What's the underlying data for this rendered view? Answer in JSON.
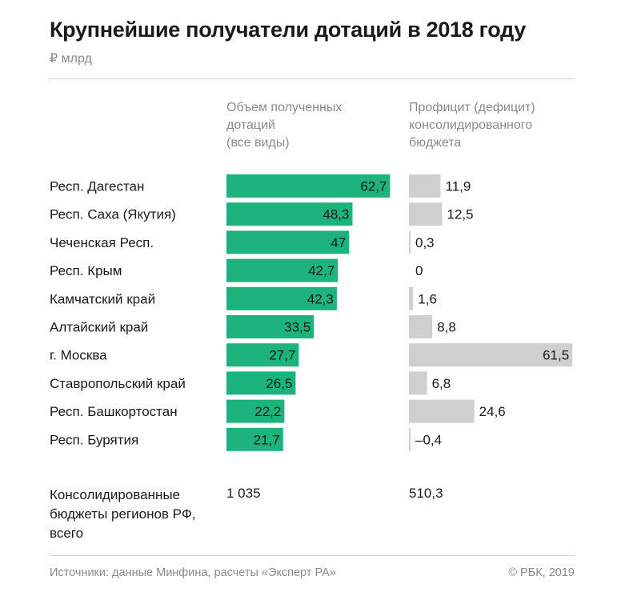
{
  "title": "Крупнейшие получатели дотаций в 2018 году",
  "unit": "₽ млрд",
  "columns": {
    "subsidies": [
      "Объем полученных",
      "дотаций",
      "(все виды)"
    ],
    "surplus": [
      "Профицит (дефицит)",
      "консолидированного",
      "бюджета"
    ]
  },
  "colors": {
    "subsidies": "#1db37d",
    "surplus": "#cfcfcf",
    "text": "#1a1a1a",
    "muted": "#8a8a8a"
  },
  "chart_data": {
    "type": "bar",
    "categories": [
      "Респ. Дагестан",
      "Респ. Саха (Якутия)",
      "Чеченская Респ.",
      "Респ. Крым",
      "Камчатский край",
      "Алтайский край",
      "г. Москва",
      "Ставропольский край",
      "Респ. Башкортостан",
      "Респ. Бурятия"
    ],
    "series": [
      {
        "name": "Объем полученных дотаций (все виды)",
        "values": [
          62.7,
          48.3,
          47,
          42.7,
          42.3,
          33.5,
          27.7,
          26.5,
          22.2,
          21.7
        ],
        "labels": [
          "62,7",
          "48,3",
          "47",
          "42,7",
          "42,3",
          "33,5",
          "27,7",
          "26,5",
          "22,2",
          "21,7"
        ]
      },
      {
        "name": "Профицит (дефицит) консолидированного бюджета",
        "values": [
          11.9,
          12.5,
          0.3,
          0,
          1.6,
          8.8,
          61.5,
          6.8,
          24.6,
          -0.4
        ],
        "labels": [
          "11,9",
          "12,5",
          "0,3",
          "0",
          "1,6",
          "8,8",
          "61,5",
          "6,8",
          "24,6",
          "–0,4"
        ]
      }
    ]
  },
  "totals": {
    "label": [
      "Консолидированные",
      "бюджеты регионов РФ,",
      "всего"
    ],
    "subsidies": "1 035",
    "surplus": "510,3"
  },
  "footer": {
    "source": "Источники: данные Минфина, расчеты «Эксперт РА»",
    "credit": "© РБК, 2019"
  }
}
